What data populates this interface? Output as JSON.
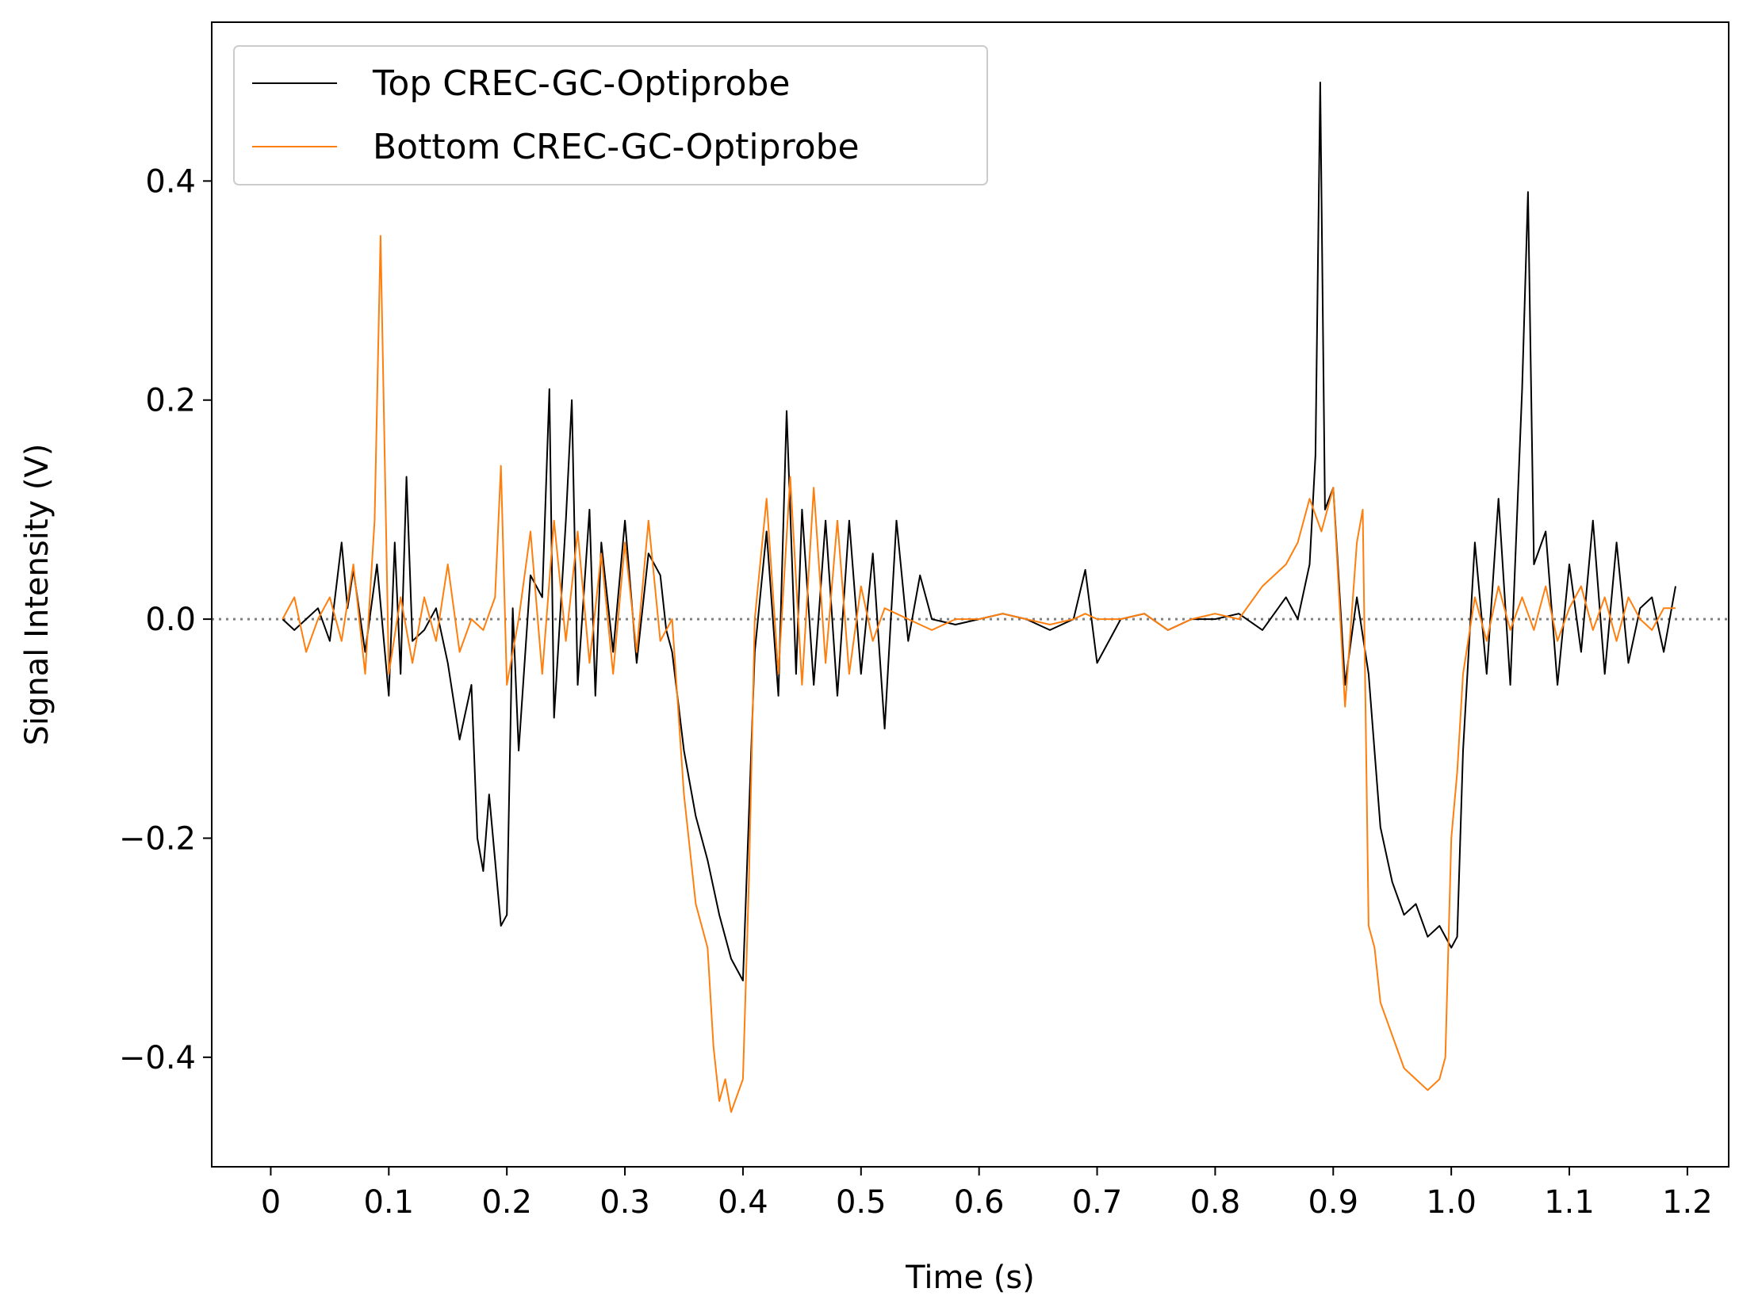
{
  "chart_data": {
    "type": "line",
    "title": "",
    "xlabel": "Time (s)",
    "ylabel": "Signal Intensity (V)",
    "xlim": [
      -0.05,
      1.235
    ],
    "ylim": [
      -0.5,
      0.545
    ],
    "xticks": [
      0,
      0.1,
      0.2,
      0.3,
      0.4,
      0.5,
      0.6,
      0.7,
      0.8,
      0.9,
      1.0,
      1.1,
      1.2
    ],
    "xtick_labels": [
      "0",
      "0.1",
      "0.2",
      "0.3",
      "0.4",
      "0.5",
      "0.6",
      "0.7",
      "0.8",
      "0.9",
      "1.0",
      "1.1",
      "1.2"
    ],
    "yticks": [
      -0.4,
      -0.2,
      0.0,
      0.2,
      0.4
    ],
    "ytick_labels": [
      "−0.4",
      "−0.2",
      "0.0",
      "0.2",
      "0.4"
    ],
    "grid": false,
    "legend_position": "top-left",
    "reference_line": {
      "y": 0.0,
      "style": "dotted",
      "color": "#808080"
    },
    "series": [
      {
        "name": "Top CREC-GC-Optiprobe",
        "color": "#000000",
        "x": [
          0.01,
          0.02,
          0.03,
          0.04,
          0.05,
          0.06,
          0.065,
          0.07,
          0.08,
          0.09,
          0.1,
          0.105,
          0.11,
          0.115,
          0.12,
          0.13,
          0.14,
          0.15,
          0.16,
          0.17,
          0.175,
          0.18,
          0.185,
          0.19,
          0.195,
          0.2,
          0.205,
          0.21,
          0.22,
          0.23,
          0.236,
          0.24,
          0.25,
          0.255,
          0.26,
          0.27,
          0.275,
          0.28,
          0.29,
          0.3,
          0.31,
          0.32,
          0.33,
          0.335,
          0.34,
          0.35,
          0.36,
          0.37,
          0.38,
          0.39,
          0.4,
          0.41,
          0.42,
          0.43,
          0.437,
          0.445,
          0.45,
          0.46,
          0.47,
          0.48,
          0.49,
          0.5,
          0.51,
          0.52,
          0.53,
          0.54,
          0.55,
          0.56,
          0.58,
          0.6,
          0.62,
          0.64,
          0.66,
          0.68,
          0.69,
          0.7,
          0.72,
          0.74,
          0.76,
          0.78,
          0.8,
          0.82,
          0.84,
          0.86,
          0.87,
          0.88,
          0.885,
          0.889,
          0.893,
          0.9,
          0.91,
          0.92,
          0.93,
          0.94,
          0.95,
          0.96,
          0.97,
          0.98,
          0.99,
          1.0,
          1.005,
          1.01,
          1.02,
          1.03,
          1.04,
          1.05,
          1.06,
          1.065,
          1.07,
          1.08,
          1.09,
          1.1,
          1.11,
          1.12,
          1.13,
          1.14,
          1.15,
          1.16,
          1.17,
          1.18,
          1.19
        ],
        "y": [
          0.0,
          -0.01,
          0.0,
          0.01,
          -0.02,
          0.07,
          0.01,
          0.045,
          -0.03,
          0.05,
          -0.07,
          0.07,
          -0.05,
          0.13,
          -0.02,
          -0.01,
          0.01,
          -0.04,
          -0.11,
          -0.06,
          -0.2,
          -0.23,
          -0.16,
          -0.22,
          -0.28,
          -0.27,
          0.01,
          -0.12,
          0.04,
          0.02,
          0.21,
          -0.09,
          0.09,
          0.2,
          -0.06,
          0.1,
          -0.07,
          0.07,
          -0.03,
          0.09,
          -0.04,
          0.06,
          0.04,
          -0.01,
          -0.03,
          -0.12,
          -0.18,
          -0.22,
          -0.27,
          -0.31,
          -0.33,
          -0.03,
          0.08,
          -0.07,
          0.19,
          -0.05,
          0.1,
          -0.06,
          0.09,
          -0.07,
          0.09,
          -0.05,
          0.06,
          -0.1,
          0.09,
          -0.02,
          0.04,
          0.0,
          -0.005,
          0.0,
          0.005,
          0.0,
          -0.01,
          0.0,
          0.045,
          -0.04,
          0.0,
          0.005,
          -0.01,
          0.0,
          0.0,
          0.005,
          -0.01,
          0.02,
          0.0,
          0.05,
          0.15,
          0.49,
          0.1,
          0.12,
          -0.06,
          0.02,
          -0.05,
          -0.19,
          -0.24,
          -0.27,
          -0.26,
          -0.29,
          -0.28,
          -0.3,
          -0.29,
          -0.12,
          0.07,
          -0.05,
          0.11,
          -0.06,
          0.21,
          0.39,
          0.05,
          0.08,
          -0.06,
          0.05,
          -0.03,
          0.09,
          -0.05,
          0.07,
          -0.04,
          0.01,
          0.02,
          -0.03,
          0.03
        ]
      },
      {
        "name": "Bottom CREC-GC-Optiprobe",
        "color": "#ff7f0e",
        "x": [
          0.01,
          0.02,
          0.03,
          0.04,
          0.05,
          0.06,
          0.07,
          0.08,
          0.088,
          0.093,
          0.1,
          0.11,
          0.12,
          0.13,
          0.14,
          0.15,
          0.16,
          0.17,
          0.18,
          0.19,
          0.195,
          0.2,
          0.21,
          0.22,
          0.23,
          0.24,
          0.25,
          0.26,
          0.27,
          0.28,
          0.29,
          0.3,
          0.31,
          0.32,
          0.33,
          0.34,
          0.345,
          0.35,
          0.36,
          0.37,
          0.375,
          0.38,
          0.385,
          0.39,
          0.4,
          0.405,
          0.41,
          0.42,
          0.43,
          0.44,
          0.45,
          0.46,
          0.47,
          0.48,
          0.49,
          0.5,
          0.51,
          0.52,
          0.54,
          0.56,
          0.58,
          0.6,
          0.62,
          0.64,
          0.66,
          0.68,
          0.69,
          0.7,
          0.72,
          0.74,
          0.76,
          0.78,
          0.8,
          0.82,
          0.84,
          0.86,
          0.87,
          0.88,
          0.89,
          0.9,
          0.91,
          0.92,
          0.925,
          0.93,
          0.935,
          0.94,
          0.95,
          0.96,
          0.97,
          0.98,
          0.99,
          0.995,
          1.0,
          1.005,
          1.01,
          1.02,
          1.03,
          1.04,
          1.05,
          1.06,
          1.07,
          1.08,
          1.09,
          1.1,
          1.11,
          1.12,
          1.13,
          1.14,
          1.15,
          1.16,
          1.17,
          1.18,
          1.19
        ],
        "y": [
          0.0,
          0.02,
          -0.03,
          0.0,
          0.02,
          -0.02,
          0.05,
          -0.05,
          0.09,
          0.35,
          -0.05,
          0.02,
          -0.04,
          0.02,
          -0.02,
          0.05,
          -0.03,
          0.0,
          -0.01,
          0.02,
          0.14,
          -0.06,
          0.0,
          0.08,
          -0.05,
          0.09,
          -0.02,
          0.08,
          -0.04,
          0.06,
          -0.05,
          0.07,
          -0.03,
          0.09,
          -0.02,
          0.0,
          -0.08,
          -0.16,
          -0.26,
          -0.3,
          -0.39,
          -0.44,
          -0.42,
          -0.45,
          -0.42,
          -0.24,
          0.0,
          0.11,
          -0.05,
          0.13,
          -0.06,
          0.12,
          -0.04,
          0.09,
          -0.05,
          0.03,
          -0.02,
          0.01,
          0.0,
          -0.01,
          0.0,
          0.0,
          0.005,
          0.0,
          -0.005,
          0.0,
          0.005,
          0.0,
          0.0,
          0.005,
          -0.01,
          0.0,
          0.005,
          0.0,
          0.03,
          0.05,
          0.07,
          0.11,
          0.08,
          0.12,
          -0.08,
          0.07,
          0.1,
          -0.28,
          -0.3,
          -0.35,
          -0.38,
          -0.41,
          -0.42,
          -0.43,
          -0.42,
          -0.4,
          -0.2,
          -0.14,
          -0.05,
          0.02,
          -0.02,
          0.03,
          -0.01,
          0.02,
          -0.01,
          0.03,
          -0.02,
          0.01,
          0.03,
          -0.01,
          0.02,
          -0.02,
          0.02,
          0.0,
          -0.01,
          0.01,
          0.01
        ]
      }
    ]
  }
}
